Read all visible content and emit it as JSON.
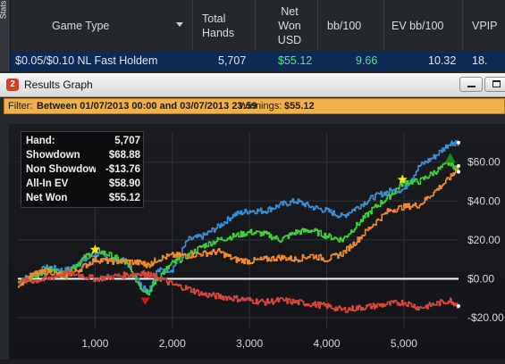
{
  "side_tab": {
    "label": "Stats"
  },
  "table": {
    "columns": [
      {
        "label": "Game Type"
      },
      {
        "label": "Total Hands"
      },
      {
        "label": "Net Won USD"
      },
      {
        "label": "bb/100"
      },
      {
        "label": "EV bb/100"
      },
      {
        "label": "VPIP"
      }
    ],
    "row": {
      "game_type": "$0.05/$0.10 NL Fast Holdem",
      "total_hands": "5,707",
      "net_won": "$55.12",
      "bb100": "9.66",
      "ev_bb100": "10.32",
      "vpip": "18."
    }
  },
  "window": {
    "icon": "2",
    "title": "Results Graph",
    "minimize_icon": "minimize-icon",
    "maximize_icon": "maximize-icon"
  },
  "filter": {
    "label": "Filter:",
    "range": "Between 01/07/2013 00:00 and 03/07/2013 23:59",
    "winnings_label": "Winnings:",
    "winnings_value": "$55.12"
  },
  "overlay": [
    {
      "label": "Hand:",
      "value": "5,707"
    },
    {
      "label": "Showdown",
      "value": "$68.88"
    },
    {
      "label": "Non Showdown",
      "value": "-$13.76"
    },
    {
      "label": "All-In EV",
      "value": "$58.90"
    },
    {
      "label": "Net Won",
      "value": "$55.12"
    }
  ],
  "chart_data": {
    "type": "line",
    "xlim": [
      0,
      5707
    ],
    "ylim": [
      -25,
      75
    ],
    "x_ticks": [
      1000,
      2000,
      3000,
      4000,
      5000
    ],
    "x_tick_labels": [
      "1,000",
      "2,000",
      "3,000",
      "4,000",
      "5,000"
    ],
    "y_ticks": [
      60,
      40,
      20,
      0,
      -20
    ],
    "y_tick_labels": [
      "$60.00",
      "$40.00",
      "$20.00",
      "$0.00",
      "-$20.00"
    ],
    "grid": true,
    "colors": {
      "showdown": "#3b8fd6",
      "net_won": "#3ecf3a",
      "all_in_ev": "#ef8a2e",
      "non_showdown": "#d8473c",
      "zero": "#ffffff",
      "star": "#f2e21f",
      "down": "#e01515",
      "up": "#1a8a1a"
    },
    "series": [
      {
        "key": "showdown",
        "x": [
          0,
          200,
          400,
          600,
          800,
          1000,
          1200,
          1400,
          1600,
          1700,
          1800,
          2000,
          2200,
          2400,
          2600,
          2800,
          3000,
          3200,
          3400,
          3600,
          3800,
          4000,
          4200,
          4400,
          4600,
          4800,
          5000,
          5200,
          5400,
          5600,
          5707
        ],
        "y": [
          -2,
          3,
          6,
          4,
          8,
          13,
          10,
          9,
          -4,
          -6,
          4,
          5,
          20,
          22,
          27,
          33,
          35,
          35,
          38,
          40,
          37,
          35,
          32,
          37,
          42,
          45,
          46,
          58,
          63,
          70,
          70
        ]
      },
      {
        "key": "net_won",
        "x": [
          0,
          200,
          400,
          600,
          800,
          1000,
          1200,
          1400,
          1600,
          1700,
          1800,
          2000,
          2200,
          2400,
          2600,
          2800,
          3000,
          3200,
          3400,
          3600,
          3800,
          4000,
          4200,
          4400,
          4600,
          4800,
          5000,
          5200,
          5400,
          5600,
          5707
        ],
        "y": [
          -3,
          1,
          5,
          2,
          9,
          15,
          12,
          8,
          -5,
          -7,
          0,
          8,
          12,
          17,
          20,
          22,
          24,
          23,
          20,
          24,
          25,
          22,
          20,
          28,
          36,
          42,
          50,
          50,
          55,
          60,
          55
        ]
      },
      {
        "key": "all_in_ev",
        "x": [
          0,
          200,
          400,
          600,
          800,
          1000,
          1200,
          1400,
          1600,
          1700,
          1800,
          2000,
          2200,
          2400,
          2600,
          2800,
          3000,
          3200,
          3400,
          3600,
          3800,
          4000,
          4200,
          4400,
          4600,
          4800,
          5000,
          5200,
          5400,
          5600,
          5707
        ],
        "y": [
          -3,
          2,
          4,
          1,
          5,
          10,
          9,
          9,
          8,
          7,
          10,
          12,
          12,
          13,
          14,
          10,
          9,
          10,
          11,
          10,
          12,
          10,
          13,
          20,
          28,
          35,
          37,
          38,
          45,
          52,
          58
        ]
      },
      {
        "key": "non_showdown",
        "x": [
          0,
          200,
          400,
          600,
          800,
          1000,
          1200,
          1400,
          1600,
          1700,
          1800,
          2000,
          2200,
          2400,
          2600,
          2800,
          3000,
          3200,
          3400,
          3600,
          3800,
          4000,
          4200,
          4400,
          4600,
          4800,
          5000,
          5200,
          5400,
          5600,
          5707
        ],
        "y": [
          -1,
          -1,
          0,
          3,
          2,
          0,
          1,
          2,
          3,
          2,
          1,
          -3,
          -5,
          -8,
          -9,
          -10,
          -11,
          -12,
          -11,
          -12,
          -13,
          -14,
          -16,
          -15,
          -14,
          -13,
          -12,
          -15,
          -13,
          -11,
          -14
        ]
      }
    ],
    "markers": [
      {
        "kind": "star",
        "x": 1000,
        "y": 15
      },
      {
        "kind": "down",
        "x": 1650,
        "y": -11
      },
      {
        "kind": "star",
        "x": 4980,
        "y": 51
      },
      {
        "kind": "up",
        "x": 5600,
        "y": 62
      }
    ]
  }
}
